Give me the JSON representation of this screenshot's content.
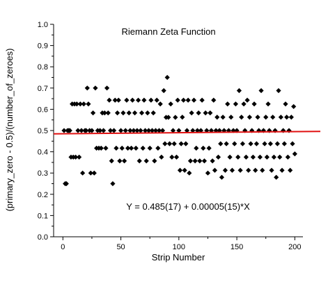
{
  "chart_data": {
    "type": "scatter",
    "title": "Riemann Zeta Function",
    "xlabel": "Strip Number",
    "ylabel": "(primary_zero - 0.5)/(number_of_zeroes)",
    "xlim": [
      -8,
      207
    ],
    "ylim": [
      0.0,
      1.0
    ],
    "xticks": [
      0,
      50,
      100,
      150,
      200
    ],
    "xtick_labels": [
      "0",
      "50",
      "100",
      "150",
      "200"
    ],
    "yticks": [
      0.0,
      0.1,
      0.2,
      0.3,
      0.4,
      0.5,
      0.6,
      0.7,
      0.8,
      0.9,
      1.0
    ],
    "ytick_labels": [
      "0.0",
      "0.1",
      "0.2",
      "0.3",
      "0.4",
      "0.5",
      "0.6",
      "0.7",
      "0.8",
      "0.9",
      "1.0"
    ],
    "annotation": "Y = 0.485(17) + 0.00005(15)*X",
    "grid": false,
    "fit_line": {
      "intercept": 0.485,
      "slope": 5e-05,
      "color": "#e01010"
    },
    "marker": {
      "shape": "diamond",
      "color": "#000000"
    },
    "series": [
      {
        "points": [
          [
            1,
            0.5
          ],
          [
            2,
            0.25
          ],
          [
            3,
            0.25
          ],
          [
            4,
            0.5
          ],
          [
            5,
            0.5
          ],
          [
            6,
            0.5
          ],
          [
            7,
            0.375
          ],
          [
            8,
            0.625
          ],
          [
            9,
            0.375
          ],
          [
            10,
            0.625
          ],
          [
            11,
            0.375
          ],
          [
            12,
            0.625
          ],
          [
            13,
            0.5
          ],
          [
            14,
            0.375
          ],
          [
            15,
            0.625
          ],
          [
            16,
            0.5
          ],
          [
            17,
            0.3
          ],
          [
            18,
            0.625
          ],
          [
            19,
            0.5
          ],
          [
            20,
            0.5
          ],
          [
            21,
            0.7
          ],
          [
            22,
            0.625
          ],
          [
            23,
            0.5
          ],
          [
            24,
            0.3
          ],
          [
            25,
            0.5
          ],
          [
            26,
            0.583
          ],
          [
            27,
            0.3
          ],
          [
            28,
            0.7
          ],
          [
            29,
            0.417
          ],
          [
            30,
            0.5
          ],
          [
            31,
            0.417
          ],
          [
            32,
            0.5
          ],
          [
            33,
            0.417
          ],
          [
            34,
            0.583
          ],
          [
            35,
            0.5
          ],
          [
            36,
            0.583
          ],
          [
            37,
            0.417
          ],
          [
            38,
            0.7
          ],
          [
            39,
            0.583
          ],
          [
            40,
            0.643
          ],
          [
            41,
            0.5
          ],
          [
            42,
            0.357
          ],
          [
            43,
            0.25
          ],
          [
            44,
            0.5
          ],
          [
            45,
            0.643
          ],
          [
            46,
            0.417
          ],
          [
            47,
            0.583
          ],
          [
            48,
            0.643
          ],
          [
            49,
            0.357
          ],
          [
            50,
            0.5
          ],
          [
            51,
            0.417
          ],
          [
            52,
            0.583
          ],
          [
            53,
            0.357
          ],
          [
            54,
            0.5
          ],
          [
            55,
            0.643
          ],
          [
            56,
            0.417
          ],
          [
            57,
            0.583
          ],
          [
            58,
            0.5
          ],
          [
            59,
            0.417
          ],
          [
            60,
            0.643
          ],
          [
            61,
            0.5
          ],
          [
            62,
            0.583
          ],
          [
            63,
            0.417
          ],
          [
            64,
            0.5
          ],
          [
            65,
            0.643
          ],
          [
            66,
            0.357
          ],
          [
            67,
            0.5
          ],
          [
            68,
            0.583
          ],
          [
            69,
            0.417
          ],
          [
            70,
            0.643
          ],
          [
            71,
            0.5
          ],
          [
            72,
            0.357
          ],
          [
            73,
            0.583
          ],
          [
            74,
            0.5
          ],
          [
            75,
            0.417
          ],
          [
            76,
            0.643
          ],
          [
            77,
            0.5
          ],
          [
            78,
            0.583
          ],
          [
            79,
            0.357
          ],
          [
            80,
            0.5
          ],
          [
            81,
            0.643
          ],
          [
            82,
            0.417
          ],
          [
            83,
            0.5
          ],
          [
            84,
            0.625
          ],
          [
            85,
            0.375
          ],
          [
            86,
            0.5
          ],
          [
            87,
            0.688
          ],
          [
            88,
            0.438
          ],
          [
            89,
            0.562
          ],
          [
            90,
            0.75
          ],
          [
            91,
            0.562
          ],
          [
            92,
            0.438
          ],
          [
            93,
            0.625
          ],
          [
            94,
            0.375
          ],
          [
            95,
            0.5
          ],
          [
            96,
            0.438
          ],
          [
            97,
            0.562
          ],
          [
            98,
            0.375
          ],
          [
            99,
            0.643
          ],
          [
            100,
            0.5
          ],
          [
            101,
            0.313
          ],
          [
            102,
            0.438
          ],
          [
            103,
            0.563
          ],
          [
            104,
            0.643
          ],
          [
            105,
            0.313
          ],
          [
            106,
            0.438
          ],
          [
            107,
            0.5
          ],
          [
            108,
            0.643
          ],
          [
            109,
            0.3
          ],
          [
            110,
            0.357
          ],
          [
            111,
            0.583
          ],
          [
            112,
            0.5
          ],
          [
            113,
            0.643
          ],
          [
            114,
            0.357
          ],
          [
            115,
            0.417
          ],
          [
            116,
            0.5
          ],
          [
            117,
            0.583
          ],
          [
            118,
            0.357
          ],
          [
            119,
            0.5
          ],
          [
            120,
            0.643
          ],
          [
            121,
            0.417
          ],
          [
            122,
            0.357
          ],
          [
            123,
            0.583
          ],
          [
            124,
            0.5
          ],
          [
            125,
            0.3
          ],
          [
            126,
            0.417
          ],
          [
            127,
            0.583
          ],
          [
            128,
            0.5
          ],
          [
            129,
            0.357
          ],
          [
            130,
            0.643
          ],
          [
            131,
            0.313
          ],
          [
            132,
            0.5
          ],
          [
            133,
            0.563
          ],
          [
            134,
            0.375
          ],
          [
            135,
            0.5
          ],
          [
            136,
            0.438
          ],
          [
            137,
            0.28
          ],
          [
            138,
            0.563
          ],
          [
            139,
            0.5
          ],
          [
            140,
            0.313
          ],
          [
            141,
            0.438
          ],
          [
            142,
            0.625
          ],
          [
            143,
            0.5
          ],
          [
            144,
            0.375
          ],
          [
            145,
            0.563
          ],
          [
            146,
            0.313
          ],
          [
            147,
            0.5
          ],
          [
            148,
            0.438
          ],
          [
            149,
            0.625
          ],
          [
            150,
            0.5
          ],
          [
            151,
            0.375
          ],
          [
            152,
            0.688
          ],
          [
            153,
            0.313
          ],
          [
            154,
            0.563
          ],
          [
            155,
            0.438
          ],
          [
            156,
            0.625
          ],
          [
            157,
            0.5
          ],
          [
            158,
            0.375
          ],
          [
            159,
            0.643
          ],
          [
            160,
            0.313
          ],
          [
            161,
            0.563
          ],
          [
            162,
            0.438
          ],
          [
            163,
            0.5
          ],
          [
            164,
            0.375
          ],
          [
            165,
            0.625
          ],
          [
            166,
            0.313
          ],
          [
            167,
            0.438
          ],
          [
            168,
            0.563
          ],
          [
            169,
            0.5
          ],
          [
            170,
            0.375
          ],
          [
            171,
            0.688
          ],
          [
            172,
            0.313
          ],
          [
            173,
            0.5
          ],
          [
            174,
            0.438
          ],
          [
            175,
            0.563
          ],
          [
            176,
            0.375
          ],
          [
            177,
            0.625
          ],
          [
            178,
            0.5
          ],
          [
            179,
            0.438
          ],
          [
            180,
            0.313
          ],
          [
            181,
            0.563
          ],
          [
            182,
            0.375
          ],
          [
            183,
            0.5
          ],
          [
            184,
            0.28
          ],
          [
            185,
            0.438
          ],
          [
            186,
            0.688
          ],
          [
            187,
            0.375
          ],
          [
            188,
            0.563
          ],
          [
            189,
            0.313
          ],
          [
            190,
            0.5
          ],
          [
            191,
            0.438
          ],
          [
            192,
            0.625
          ],
          [
            193,
            0.563
          ],
          [
            194,
            0.375
          ],
          [
            195,
            0.5
          ],
          [
            196,
            0.313
          ],
          [
            197,
            0.563
          ],
          [
            198,
            0.438
          ],
          [
            199,
            0.613
          ],
          [
            200,
            0.39
          ]
        ]
      }
    ]
  }
}
